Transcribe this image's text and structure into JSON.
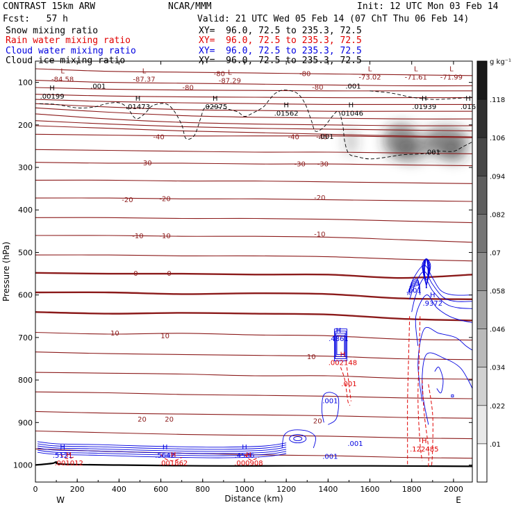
{
  "header": {
    "model": "CONTRAST 15km ARW",
    "org": "NCAR/MMM",
    "init": "Init: 12 UTC Mon 03 Feb 14",
    "fcst": "Fcst:   57 h",
    "valid": "Valid: 21 UTC Wed 05 Feb 14 (07 ChT Thu 06 Feb 14)",
    "fields": [
      {
        "name": "Snow mixing ratio",
        "xy": "XY=  96.0, 72.5 to 235.3, 72.5",
        "color": "#000000"
      },
      {
        "name": "Rain water mixing ratio",
        "xy": "XY=  96.0, 72.5 to 235.3, 72.5",
        "color": "#e00000"
      },
      {
        "name": "Cloud water mixing ratio",
        "xy": "XY=  96.0, 72.5 to 235.3, 72.5",
        "color": "#0000e0"
      },
      {
        "name": "Cloud ice mixing ratio",
        "xy": "XY=  96.0, 72.5 to 235.3, 72.5",
        "color": "#000000"
      }
    ]
  },
  "colors": {
    "temperature": "#8b1a1a",
    "rain": "#e00000",
    "cloud_water": "#0000e0",
    "cloud_ice": "#000000"
  },
  "chart_data": {
    "type": "contour",
    "xlabel": "Distance (km)",
    "ylabel": "Pressure (hPa)",
    "xlim": [
      0,
      2090
    ],
    "ylim": [
      1040,
      50
    ],
    "x_ticks": [
      0,
      200,
      400,
      600,
      800,
      1000,
      1200,
      1400,
      1600,
      1800,
      2000
    ],
    "y_ticks": [
      100,
      200,
      300,
      400,
      500,
      600,
      700,
      800,
      900,
      1000
    ],
    "x_side_labels": {
      "left": "W",
      "right": "E"
    },
    "colorbar": {
      "unit": "g kg⁻¹",
      "levels": [
        ".01",
        ".022",
        ".034",
        ".046",
        ".058",
        ".07",
        ".082",
        ".094",
        ".106",
        ".118"
      ]
    },
    "temperature_contours": [
      {
        "value": -80,
        "p": [
          68,
          74,
          76,
          78,
          80,
          82,
          84
        ]
      },
      {
        "value": -80,
        "p": [
          95,
          100,
          102,
          104,
          106,
          108,
          108
        ]
      },
      {
        "value": -80,
        "p": [
          112,
          116,
          118,
          119,
          120,
          120,
          120
        ]
      },
      {
        "value": -80,
        "p": [
          128,
          132,
          134,
          135,
          136,
          136,
          136
        ]
      },
      {
        "value": -80,
        "p": [
          140,
          145,
          148,
          150,
          152,
          152,
          152
        ]
      },
      {
        "value": -80,
        "p": [
          150,
          158,
          164,
          166,
          168,
          168,
          168
        ]
      },
      {
        "value": -80,
        "p": [
          160,
          170,
          178,
          182,
          184,
          186,
          186
        ]
      },
      {
        "value": -80,
        "p": [
          174,
          186,
          194,
          198,
          200,
          202,
          202
        ]
      },
      {
        "value": -70,
        "p": [
          190,
          198,
          204,
          208,
          210,
          212,
          214
        ]
      },
      {
        "value": -60,
        "p": [
          202,
          208,
          214,
          218,
          222,
          226,
          228
        ]
      },
      {
        "value": -40,
        "p": [
          222,
          224,
          226,
          226,
          226,
          228,
          230
        ]
      },
      {
        "value": -30,
        "p": [
          258,
          260,
          262,
          264,
          264,
          266,
          268
        ]
      },
      {
        "value": -30,
        "p": [
          288,
          290,
          290,
          292,
          292,
          294,
          296
        ]
      },
      {
        "value": -20,
        "p": [
          330,
          330,
          332,
          332,
          334,
          336,
          338
        ]
      },
      {
        "value": -20,
        "p": [
          372,
          372,
          374,
          374,
          376,
          378,
          380
        ]
      },
      {
        "value": -10,
        "p": [
          418,
          418,
          420,
          420,
          422,
          426,
          430
        ]
      },
      {
        "value": -10,
        "p": [
          460,
          460,
          462,
          462,
          464,
          470,
          476
        ]
      },
      {
        "value": -10,
        "p": [
          506,
          506,
          508,
          508,
          510,
          516,
          520
        ]
      },
      {
        "value": 0,
        "p": [
          548,
          550,
          550,
          552,
          552,
          560,
          552
        ]
      },
      {
        "value": 0,
        "p": [
          594,
          594,
          598,
          596,
          598,
          608,
          610
        ]
      },
      {
        "value": 0,
        "p": [
          640,
          644,
          642,
          644,
          646,
          656,
          660
        ]
      },
      {
        "value": 10,
        "p": [
          688,
          692,
          690,
          694,
          696,
          704,
          706
        ]
      },
      {
        "value": 10,
        "p": [
          734,
          738,
          740,
          742,
          744,
          750,
          752
        ]
      },
      {
        "value": 10,
        "p": [
          782,
          784,
          786,
          790,
          790,
          796,
          798
        ]
      },
      {
        "value": 10,
        "p": [
          828,
          830,
          834,
          836,
          838,
          842,
          844
        ]
      },
      {
        "value": 20,
        "p": [
          874,
          878,
          880,
          882,
          884,
          888,
          890
        ]
      },
      {
        "value": 20,
        "p": [
          920,
          924,
          928,
          930,
          932,
          936,
          938
        ]
      },
      {
        "value": 20,
        "p": [
          962,
          968,
          972,
          976,
          978,
          982,
          984
        ]
      }
    ],
    "contour_x": [
      0,
      350,
      700,
      1050,
      1400,
      1750,
      2090
    ],
    "temperature_labels": [
      {
        "text": "-80",
        "x": 880,
        "p": 80
      },
      {
        "text": "-80",
        "x": 1290,
        "p": 80
      },
      {
        "text": "-80",
        "x": 730,
        "p": 113
      },
      {
        "text": "-80",
        "x": 1350,
        "p": 112
      },
      {
        "text": "-40",
        "x": 590,
        "p": 229
      },
      {
        "text": "-40",
        "x": 1235,
        "p": 229
      },
      {
        "text": "-40",
        "x": 1370,
        "p": 229
      },
      {
        "text": "-30",
        "x": 530,
        "p": 290
      },
      {
        "text": "-30",
        "x": 1265,
        "p": 293
      },
      {
        "text": "-30",
        "x": 1375,
        "p": 293
      },
      {
        "text": "-20",
        "x": 440,
        "p": 377
      },
      {
        "text": "-20",
        "x": 620,
        "p": 374
      },
      {
        "text": "-20",
        "x": 1360,
        "p": 372
      },
      {
        "text": "-10",
        "x": 490,
        "p": 462
      },
      {
        "text": "-10",
        "x": 620,
        "p": 462
      },
      {
        "text": "-10",
        "x": 1360,
        "p": 458
      },
      {
        "text": "0",
        "x": 480,
        "p": 550
      },
      {
        "text": "0",
        "x": 640,
        "p": 550
      },
      {
        "text": "10",
        "x": 380,
        "p": 690
      },
      {
        "text": "10",
        "x": 620,
        "p": 697
      },
      {
        "text": "10",
        "x": 1320,
        "p": 746
      },
      {
        "text": "20",
        "x": 510,
        "p": 893
      },
      {
        "text": "20",
        "x": 640,
        "p": 893
      },
      {
        "text": "20",
        "x": 1350,
        "p": 897
      }
    ],
    "extrema": [
      {
        "kind": "L",
        "value": "-84.58",
        "x": 130,
        "p": 85,
        "color": "#8b1a1a"
      },
      {
        "kind": "L",
        "value": "-87.37",
        "x": 520,
        "p": 85,
        "color": "#8b1a1a"
      },
      {
        "kind": "L",
        "value": "-87.29",
        "x": 930,
        "p": 88,
        "color": "#8b1a1a"
      },
      {
        "kind": "L",
        "value": "-73.02",
        "x": 1600,
        "p": 80,
        "color": "#8b1a1a"
      },
      {
        "kind": "L",
        "value": "-71.61",
        "x": 1820,
        "p": 80,
        "color": "#8b1a1a"
      },
      {
        "kind": "L",
        "value": "-71.99",
        "x": 1990,
        "p": 80,
        "color": "#8b1a1a"
      },
      {
        "kind": "H",
        "value": ".00199",
        "x": 80,
        "p": 125,
        "color": "#000000"
      },
      {
        "kind": "H",
        "value": ".01473",
        "x": 490,
        "p": 150,
        "color": "#000000"
      },
      {
        "kind": "H",
        "value": ".02975",
        "x": 860,
        "p": 150,
        "color": "#000000"
      },
      {
        "kind": "H",
        "value": ".01562",
        "x": 1200,
        "p": 165,
        "color": "#000000"
      },
      {
        "kind": "H",
        "value": ".01046",
        "x": 1510,
        "p": 165,
        "color": "#000000"
      },
      {
        "kind": "H",
        "value": ".01939",
        "x": 1860,
        "p": 150,
        "color": "#000000"
      },
      {
        "kind": "H",
        "value": ".016",
        "x": 2070,
        "p": 150,
        "color": "#000000"
      },
      {
        "kind": "H",
        "value": ".9372",
        "x": 1900,
        "p": 612,
        "color": "#0000e0"
      },
      {
        "kind": "H",
        "value": ".4861",
        "x": 1450,
        "p": 695,
        "color": "#0000e0"
      },
      {
        "kind": "H",
        "value": ".002148",
        "x": 1470,
        "p": 752,
        "color": "#e00000"
      },
      {
        "kind": "H",
        "value": ".122485",
        "x": 1860,
        "p": 955,
        "color": "#e00000"
      },
      {
        "kind": "H",
        "value": ".5121",
        "x": 130,
        "p": 970,
        "color": "#0000e0"
      },
      {
        "kind": "H",
        "value": ".001012",
        "x": 160,
        "p": 988,
        "color": "#e00000"
      },
      {
        "kind": "H",
        "value": ".5642",
        "x": 620,
        "p": 970,
        "color": "#0000e0"
      },
      {
        "kind": "H",
        "value": ".001862",
        "x": 660,
        "p": 988,
        "color": "#e00000"
      },
      {
        "kind": "H",
        "value": ".4536",
        "x": 1000,
        "p": 970,
        "color": "#0000e0"
      },
      {
        "kind": "H",
        "value": ".000908",
        "x": 1020,
        "p": 988,
        "color": "#e00000"
      }
    ],
    "small_labels": [
      {
        "text": ".001",
        "x": 300,
        "p": 110,
        "color": "#000000"
      },
      {
        "text": ".001",
        "x": 1520,
        "p": 110,
        "color": "#000000"
      },
      {
        "text": ".001",
        "x": 1390,
        "p": 228,
        "color": "#000000"
      },
      {
        "text": ".001",
        "x": 1900,
        "p": 265,
        "color": "#000000"
      },
      {
        "text": ".001",
        "x": 1810,
        "p": 590,
        "color": "#0000e0"
      },
      {
        "text": ".001",
        "x": 1410,
        "p": 850,
        "color": "#0000e0"
      },
      {
        "text": ".001",
        "x": 1500,
        "p": 810,
        "color": "#e00000"
      },
      {
        "text": ".001",
        "x": 1410,
        "p": 980,
        "color": "#0000e0"
      },
      {
        "text": ".001",
        "x": 1530,
        "p": 950,
        "color": "#0000e0"
      }
    ],
    "snow_blobs": [
      {
        "x": 1510,
        "p": 240,
        "rx": 30,
        "rp": 30,
        "opacity": 0.28
      },
      {
        "x": 1750,
        "p": 238,
        "rx": 85,
        "rp": 40,
        "opacity": 0.55
      },
      {
        "x": 1960,
        "p": 240,
        "rx": 110,
        "rp": 35,
        "opacity": 0.55
      },
      {
        "x": 1800,
        "p": 262,
        "rx": 75,
        "rp": 25,
        "opacity": 0.4
      },
      {
        "x": 2000,
        "p": 265,
        "rx": 60,
        "rp": 22,
        "opacity": 0.4
      }
    ]
  }
}
